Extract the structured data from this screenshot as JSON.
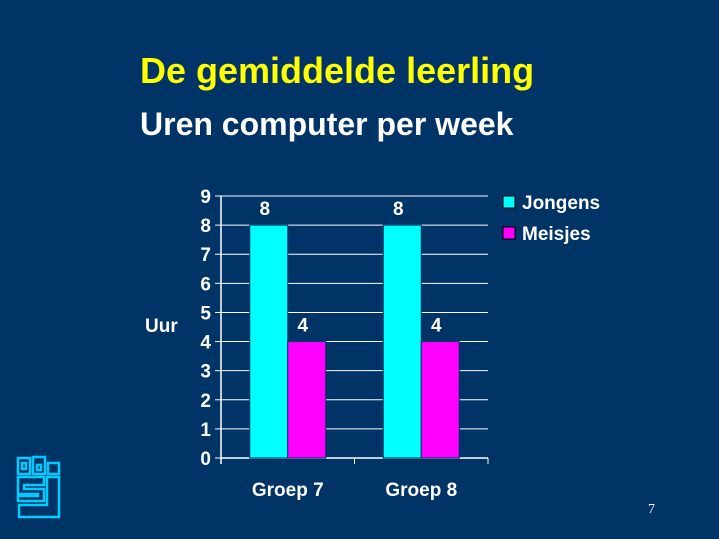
{
  "slide": {
    "title": "De gemiddelde leerling",
    "subtitle": "Uren computer per week",
    "page_number": "7"
  },
  "colors": {
    "background": "#003366",
    "title": "#ffff00",
    "text": "#ffffff",
    "logo": "#00ccff"
  },
  "logo": {
    "icon": "cbs-logo-icon"
  },
  "chart_data": {
    "type": "bar",
    "categories": [
      "Groep 7",
      "Groep 8"
    ],
    "series": [
      {
        "name": "Jongens",
        "values": [
          8,
          8
        ],
        "color": "#00ffff"
      },
      {
        "name": "Meisjes",
        "values": [
          4,
          4
        ],
        "color": "#ff00ff"
      }
    ],
    "ylabel": "Uur",
    "ylim": [
      0,
      9
    ],
    "yticks": [
      "0",
      "1",
      "2",
      "3",
      "4",
      "5",
      "6",
      "7",
      "8",
      "9"
    ],
    "data_labels": true,
    "grid": true,
    "legend_position": "top-right"
  }
}
